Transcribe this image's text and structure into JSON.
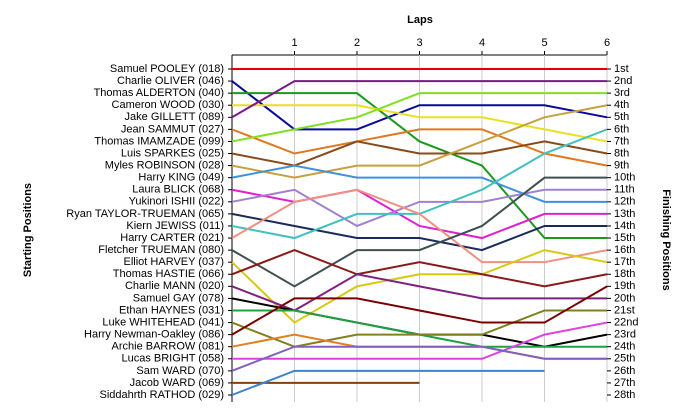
{
  "chart_data": {
    "type": "line",
    "title": "Laps",
    "y_label": "Starting Positions",
    "y2_label": "Finishing Positions",
    "x": [
      0,
      1,
      2,
      3,
      4,
      5,
      6
    ],
    "xlim": [
      0,
      6
    ],
    "xticks": [
      1,
      2,
      3,
      4,
      5,
      6
    ],
    "ylim": [
      28,
      1
    ],
    "y_inverted": true,
    "y2_labels": [
      "1st",
      "2nd",
      "3rd",
      "4th",
      "5th",
      "6th",
      "7th",
      "8th",
      "9th",
      "10th",
      "11th",
      "12th",
      "13th",
      "14th",
      "15th",
      "16th",
      "17th",
      "18th",
      "19th",
      "20th",
      "21st",
      "22nd",
      "23rd",
      "24th",
      "25th",
      "26th",
      "27th",
      "28th"
    ],
    "grid": true,
    "series": [
      {
        "name": "Samuel POOLEY (018)",
        "color": "#e00000",
        "values": [
          1,
          1,
          1,
          1,
          1,
          1,
          1
        ]
      },
      {
        "name": "Charlie OLIVER (046)",
        "color": "#0a0a9a",
        "values": [
          2,
          6,
          6,
          4,
          4,
          4,
          5
        ]
      },
      {
        "name": "Thomas ALDERTON (040)",
        "color": "#1a9a1a",
        "values": [
          3,
          3,
          3,
          7,
          9,
          15,
          15
        ]
      },
      {
        "name": "Cameron WOOD (030)",
        "color": "#e8e020",
        "values": [
          4,
          4,
          4,
          5,
          5,
          6,
          7
        ]
      },
      {
        "name": "Jake GILLETT (089)",
        "color": "#7a1a8a",
        "values": [
          5,
          2,
          2,
          2,
          2,
          2,
          2
        ]
      },
      {
        "name": "Jean SAMMUT (027)",
        "color": "#e07820",
        "values": [
          6,
          8,
          7,
          6,
          6,
          8,
          9
        ]
      },
      {
        "name": "Thomas IMAMZADE (099)",
        "color": "#80e020",
        "values": [
          7,
          6,
          5,
          3,
          3,
          3,
          3
        ]
      },
      {
        "name": "Luis SPARKES (025)",
        "color": "#8a4a1a",
        "values": [
          8,
          9,
          7,
          8,
          8,
          7,
          8
        ]
      },
      {
        "name": "Myles ROBINSON (028)",
        "color": "#c8a040",
        "values": [
          9,
          10,
          9,
          9,
          7,
          5,
          4
        ]
      },
      {
        "name": "Harry KING (049)",
        "color": "#4090e0",
        "values": [
          10,
          9,
          10,
          10,
          10,
          12,
          12
        ]
      },
      {
        "name": "Laura BLICK (068)",
        "color": "#e020d0",
        "values": [
          11,
          12,
          11,
          14,
          15,
          13,
          13
        ]
      },
      {
        "name": "Yukinori ISHII (022)",
        "color": "#a080d0",
        "values": [
          12,
          11,
          14,
          12,
          12,
          11,
          11
        ]
      },
      {
        "name": "Ryan TAYLOR-TRUEMAN (065)",
        "color": "#1a2a5a",
        "values": [
          13,
          14,
          15,
          15,
          16,
          14,
          14
        ]
      },
      {
        "name": "Kiern JEWISS (011)",
        "color": "#40c0c0",
        "values": [
          14,
          15,
          13,
          13,
          11,
          8,
          6
        ]
      },
      {
        "name": "Harry CARTER (021)",
        "color": "#f09080",
        "values": [
          15,
          12,
          11,
          13,
          17,
          17,
          16
        ]
      },
      {
        "name": "Fletcher TRUEMAN (080)",
        "color": "#405050",
        "values": [
          16,
          19,
          16,
          16,
          14,
          10,
          10
        ]
      },
      {
        "name": "Elliot HARVEY (037)",
        "color": "#d8c810",
        "values": [
          17,
          22,
          19,
          18,
          18,
          16,
          17
        ]
      },
      {
        "name": "Thomas HASTIE (066)",
        "color": "#8a1a1a",
        "values": [
          18,
          16,
          18,
          17,
          18,
          19,
          18
        ]
      },
      {
        "name": "Charlie MANN (020)",
        "color": "#802080",
        "values": [
          19,
          21,
          18,
          19,
          20,
          20,
          20
        ]
      },
      {
        "name": "Samuel GAY (078)",
        "color": "#000000",
        "values": [
          20,
          21,
          22,
          23,
          23,
          24,
          23
        ]
      },
      {
        "name": "Ethan HAYNES (031)",
        "color": "#20a040",
        "values": [
          21,
          21,
          22,
          23,
          24,
          24,
          24
        ]
      },
      {
        "name": "Luke WHITEHEAD (041)",
        "color": "#808020",
        "values": [
          22,
          24,
          23,
          23,
          23,
          21,
          21
        ]
      },
      {
        "name": "Harry Newman-Oakley (086)",
        "color": "#7a0000",
        "values": [
          23,
          20,
          20,
          21,
          22,
          22,
          19
        ]
      },
      {
        "name": "Archie BARROW (081)",
        "color": "#e08020",
        "values": [
          24,
          23,
          24,
          24,
          24,
          25,
          25
        ]
      },
      {
        "name": "Lucas BRIGHT (058)",
        "color": "#e040e0",
        "values": [
          25,
          25,
          25,
          25,
          25,
          23,
          22
        ]
      },
      {
        "name": "Sam WARD (070)",
        "color": "#8060c0",
        "values": [
          26,
          24,
          24,
          24,
          24,
          25,
          25
        ]
      },
      {
        "name": "Jacob WARD (069)",
        "color": "#804010",
        "values": [
          27,
          27,
          27,
          27,
          null,
          null,
          null
        ]
      },
      {
        "name": "Siddahrth RATHOD (029)",
        "color": "#4080d0",
        "values": [
          28,
          26,
          26,
          26,
          26,
          26,
          null
        ]
      }
    ]
  }
}
